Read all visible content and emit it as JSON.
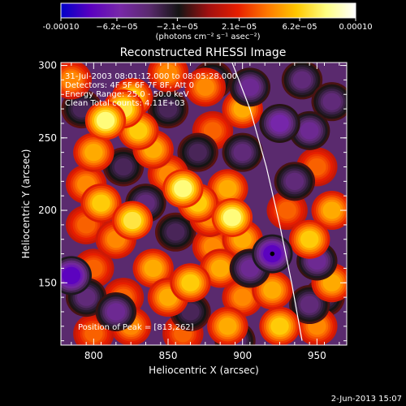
{
  "chart_data": {
    "type": "heatmap",
    "title": "Reconstructed RHESSI Image",
    "xlabel": "Heliocentric X (arcsec)",
    "ylabel": "Heliocentric Y (arcsec)",
    "xlim": [
      778,
      970
    ],
    "ylim": [
      107,
      302
    ],
    "x_ticks": [
      800,
      850,
      900,
      950
    ],
    "y_ticks": [
      150,
      200,
      250,
      300
    ],
    "colorbar": {
      "ticks": [
        "-0.00010",
        "−6.2e−05",
        "−2.1e−05",
        "2.1e−05",
        "6.2e−05",
        "0.00010"
      ],
      "values": [
        -0.0001,
        -6.2e-05,
        -2.1e-05,
        2.1e-05,
        6.2e-05,
        0.0001
      ],
      "unit": "(photons cm⁻² s⁻¹ asec⁻²)",
      "colormap": [
        "#0000c8",
        "#5a00c0",
        "#7828a8",
        "#5a2a6e",
        "#141414",
        "#a01010",
        "#e61e00",
        "#ff7800",
        "#ffc800",
        "#ffff82",
        "#ffffff"
      ]
    },
    "annotations": [
      "31-Jul-2003 08:01:12.000 to 08:05:28.000",
      "Detectors: 4F 5F 6F 7F 8F, Att 0",
      "Energy Range: 25.0 - 50.0 keV",
      "Clean   Total counts: 4.11E+03"
    ],
    "peak_text": "Position of Peak = [813,262]",
    "peak_marker": {
      "x": 920,
      "y": 170
    },
    "limb_curve": [
      [
        893,
        302
      ],
      [
        905,
        270
      ],
      [
        916,
        230
      ],
      [
        925,
        190
      ],
      [
        933,
        150
      ],
      [
        940,
        110
      ]
    ],
    "blobs": [
      {
        "x": 808,
        "y": 262,
        "v": 9e-05
      },
      {
        "x": 820,
        "y": 270,
        "v": 8e-05
      },
      {
        "x": 826,
        "y": 278,
        "v": 7e-05
      },
      {
        "x": 830,
        "y": 255,
        "v": 7e-05
      },
      {
        "x": 840,
        "y": 242,
        "v": 6e-05
      },
      {
        "x": 785,
        "y": 290,
        "v": 5e-05
      },
      {
        "x": 800,
        "y": 240,
        "v": 6e-05
      },
      {
        "x": 795,
        "y": 218,
        "v": 5e-05
      },
      {
        "x": 805,
        "y": 205,
        "v": 7e-05
      },
      {
        "x": 826,
        "y": 193,
        "v": 8e-05
      },
      {
        "x": 815,
        "y": 180,
        "v": 5e-05
      },
      {
        "x": 800,
        "y": 160,
        "v": 4e-05
      },
      {
        "x": 840,
        "y": 160,
        "v": 6e-05
      },
      {
        "x": 820,
        "y": 140,
        "v": 4e-05
      },
      {
        "x": 860,
        "y": 215,
        "v": 9e-05
      },
      {
        "x": 870,
        "y": 205,
        "v": 7e-05
      },
      {
        "x": 850,
        "y": 225,
        "v": 5e-05
      },
      {
        "x": 890,
        "y": 215,
        "v": 6e-05
      },
      {
        "x": 893,
        "y": 195,
        "v": 9e-05
      },
      {
        "x": 900,
        "y": 180,
        "v": 6e-05
      },
      {
        "x": 880,
        "y": 175,
        "v": 5e-05
      },
      {
        "x": 878,
        "y": 195,
        "v": 5e-05
      },
      {
        "x": 885,
        "y": 160,
        "v": 6e-05
      },
      {
        "x": 865,
        "y": 150,
        "v": 7e-05
      },
      {
        "x": 850,
        "y": 140,
        "v": 6e-05
      },
      {
        "x": 900,
        "y": 140,
        "v": 5e-05
      },
      {
        "x": 890,
        "y": 120,
        "v": 6e-05
      },
      {
        "x": 860,
        "y": 115,
        "v": 4e-05
      },
      {
        "x": 825,
        "y": 120,
        "v": 5e-05
      },
      {
        "x": 800,
        "y": 115,
        "v": 4e-05
      },
      {
        "x": 920,
        "y": 145,
        "v": 6e-05
      },
      {
        "x": 925,
        "y": 120,
        "v": 7e-05
      },
      {
        "x": 950,
        "y": 120,
        "v": 5e-05
      },
      {
        "x": 960,
        "y": 150,
        "v": 6e-05
      },
      {
        "x": 945,
        "y": 180,
        "v": 7e-05
      },
      {
        "x": 960,
        "y": 200,
        "v": 6e-05
      },
      {
        "x": 930,
        "y": 200,
        "v": 4e-05
      },
      {
        "x": 950,
        "y": 230,
        "v": 4e-05
      },
      {
        "x": 880,
        "y": 255,
        "v": 4e-05
      },
      {
        "x": 900,
        "y": 270,
        "v": 6e-05
      },
      {
        "x": 875,
        "y": 285,
        "v": 5e-05
      },
      {
        "x": 850,
        "y": 295,
        "v": 5e-05
      },
      {
        "x": 795,
        "y": 190,
        "v": 4e-05
      },
      {
        "x": 850,
        "y": 270,
        "v": -4e-05
      },
      {
        "x": 820,
        "y": 230,
        "v": -4e-05
      },
      {
        "x": 925,
        "y": 260,
        "v": -7e-05
      },
      {
        "x": 945,
        "y": 255,
        "v": -6e-05
      },
      {
        "x": 900,
        "y": 240,
        "v": -5e-05
      },
      {
        "x": 905,
        "y": 285,
        "v": -6e-05
      },
      {
        "x": 940,
        "y": 290,
        "v": -5e-05
      },
      {
        "x": 960,
        "y": 275,
        "v": -5e-05
      },
      {
        "x": 935,
        "y": 220,
        "v": -5e-05
      },
      {
        "x": 920,
        "y": 170,
        "v": -9e-05
      },
      {
        "x": 905,
        "y": 160,
        "v": -6e-05
      },
      {
        "x": 950,
        "y": 165,
        "v": -6e-05
      },
      {
        "x": 955,
        "y": 140,
        "v": -4e-05
      },
      {
        "x": 785,
        "y": 155,
        "v": -9e-05
      },
      {
        "x": 795,
        "y": 140,
        "v": -5e-05
      },
      {
        "x": 835,
        "y": 205,
        "v": -5e-05
      },
      {
        "x": 815,
        "y": 130,
        "v": -6e-05
      },
      {
        "x": 870,
        "y": 240,
        "v": -4e-05
      },
      {
        "x": 855,
        "y": 185,
        "v": -4e-05
      },
      {
        "x": 865,
        "y": 130,
        "v": -4e-05
      },
      {
        "x": 895,
        "y": 110,
        "v": -5e-05
      },
      {
        "x": 945,
        "y": 135,
        "v": -5e-05
      },
      {
        "x": 880,
        "y": 290,
        "v": -4e-05
      },
      {
        "x": 792,
        "y": 270,
        "v": -4e-05
      }
    ]
  },
  "footer": {
    "timestamp": "2-Jun-2013 15:07"
  }
}
